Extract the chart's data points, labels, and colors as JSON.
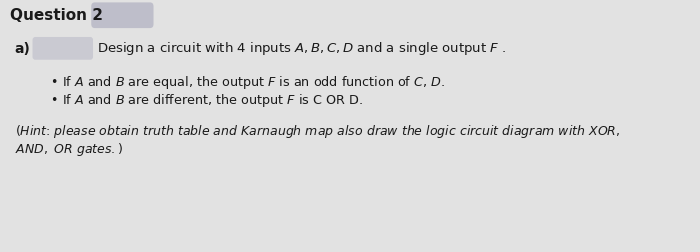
{
  "title": "Question 2",
  "part_label": "a)",
  "intro": "Design a circuit with 4 inputs $\\it{A, B, C, D}$ and a single output $\\it{F}$ .",
  "bullet1": "If $\\it{A}$ and $\\it{B}$ are equal, the output $\\it{F}$ is an odd function of $\\it{C}$, $\\it{D}$.",
  "bullet2": "If $\\it{A}$ and $\\it{B}$ are different, the output $\\it{F}$ is C OR D.",
  "hint1": "$(\\it{Hint}$: please obtain truth table and $\\it{Karnaugh}$ map also draw the logic circuit diagram with $\\it{XOR}$,",
  "hint2": "$\\it{AND}$, $\\it{OR}$ gates.)",
  "bg_color": "#e8e8e8",
  "text_color": "#1a1a1a",
  "title_box_color": "#b8b8c8",
  "part_box_color": "#c0c0cc",
  "fig_bg": "#e2e2e2"
}
